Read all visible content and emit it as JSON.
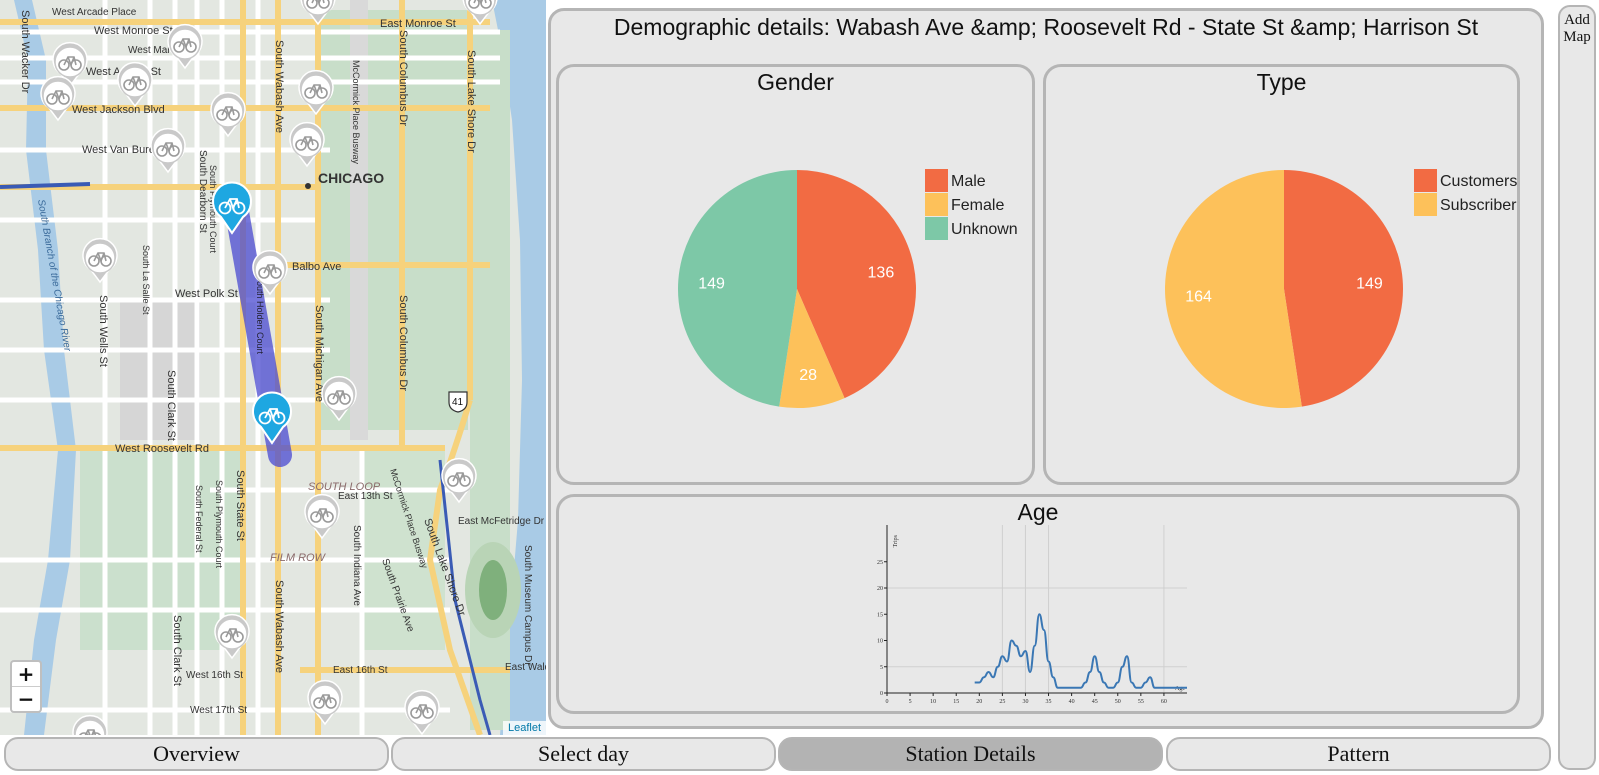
{
  "map": {
    "zoom_in": "+",
    "zoom_out": "−",
    "attribution": "Leaflet",
    "labels": {
      "w_arcade": "West Arcade Place",
      "w_monroe": "West Monroe St",
      "e_monroe": "East Monroe St",
      "w_madison": "West Mart",
      "w_adams": "West Adams St",
      "w_jackson": "West Jackson Blvd",
      "w_vanburen": "West Van Buren St",
      "chicago": "CHICAGO",
      "balbo": "Balbo Ave",
      "w_polk": "West Polk St",
      "w_roosevelt": "West Roosevelt Rd",
      "e_13th": "East 13th St",
      "e_mcfetridge": "East McFetridge Dr",
      "w_16th": "West 16th St",
      "e_16th": "East 16th St",
      "w_17th": "West 17th St",
      "e_waldron": "East Waldron Dr",
      "south_loop": "SOUTH LOOP",
      "film_row": "FILM ROW",
      "route41": "41",
      "s_wabash": "South Wabash Ave",
      "s_state": "South State St",
      "s_michigan": "South Michigan Ave",
      "s_columbus": "South Columbus Dr",
      "s_lakeshore": "South Lake Shore Dr",
      "mccormick": "McCormick Place Busway",
      "s_clark": "South Clark St",
      "s_wells": "South Wells St",
      "s_lasalle": "South La Salle St",
      "s_dearborn": "South Dearborn St",
      "s_plymouth": "South Plymouth Court",
      "s_federal": "South Federal St",
      "s_indiana": "South Indiana Ave",
      "s_prairie": "South Prairie Ave",
      "s_wacker": "South Wacker Dr",
      "river": "South Branch of the Chicago River",
      "s_holden": "South Holden Court",
      "s_museum": "South Museum Campus Dr"
    }
  },
  "dashboard": {
    "title": "Demographic details: Wabash Ave &amp; Roosevelt Rd - State St &amp; Harrison St",
    "gender": {
      "title": "Gender",
      "legend": [
        {
          "label": "Male",
          "color": "#f26b43"
        },
        {
          "label": "Female",
          "color": "#fdc15a"
        },
        {
          "label": "Unknown",
          "color": "#7dc8a7"
        }
      ]
    },
    "type": {
      "title": "Type",
      "legend": [
        {
          "label": "Customers",
          "color": "#f26b43"
        },
        {
          "label": "Subscribers",
          "color": "#fdc15a"
        }
      ]
    },
    "age": {
      "title": "Age",
      "ylabel": "Trips",
      "xlabel": "Age"
    }
  },
  "chart_data": [
    {
      "type": "pie",
      "title": "Gender",
      "categories": [
        "Male",
        "Female",
        "Unknown"
      ],
      "values": [
        136,
        28,
        149
      ],
      "colors": [
        "#f26b43",
        "#fdc15a",
        "#7dc8a7"
      ]
    },
    {
      "type": "pie",
      "title": "Type",
      "categories": [
        "Customers",
        "Subscribers"
      ],
      "values": [
        149,
        164
      ],
      "colors": [
        "#f26b43",
        "#fdc15a"
      ]
    },
    {
      "type": "line",
      "title": "Age",
      "xlabel": "Age",
      "ylabel": "Trips",
      "xlim": [
        0,
        65
      ],
      "ylim": [
        0,
        32
      ],
      "xticks": [
        0,
        5,
        10,
        15,
        20,
        25,
        30,
        35,
        40,
        45,
        50,
        55,
        60
      ],
      "yticks": [
        0,
        5,
        10,
        15,
        20,
        25
      ],
      "x": [
        19,
        20,
        21,
        22,
        23,
        24,
        25,
        26,
        27,
        28,
        29,
        30,
        31,
        32,
        33,
        34,
        35,
        36,
        37,
        38,
        39,
        40,
        41,
        42,
        43,
        44,
        45,
        46,
        47,
        48,
        49,
        50,
        51,
        52,
        53,
        54,
        55,
        56,
        57,
        58,
        59,
        60,
        61,
        62,
        63,
        64,
        65
      ],
      "values": [
        2,
        2,
        3,
        4,
        3,
        5,
        7,
        6,
        10,
        9,
        7,
        8,
        4,
        9,
        15,
        12,
        6,
        3,
        1,
        1,
        1,
        1,
        1,
        1,
        2,
        4,
        7,
        4,
        2,
        1,
        1,
        2,
        5,
        7,
        2,
        1,
        1,
        2,
        3,
        1,
        1,
        1,
        1,
        1,
        1,
        1,
        1
      ],
      "color": "#3a77b4"
    }
  ],
  "rail": {
    "line1": "Add",
    "line2": "Map"
  },
  "tabs": [
    {
      "label": "Overview"
    },
    {
      "label": "Select day"
    },
    {
      "label": "Station Details"
    },
    {
      "label": "Pattern"
    }
  ]
}
